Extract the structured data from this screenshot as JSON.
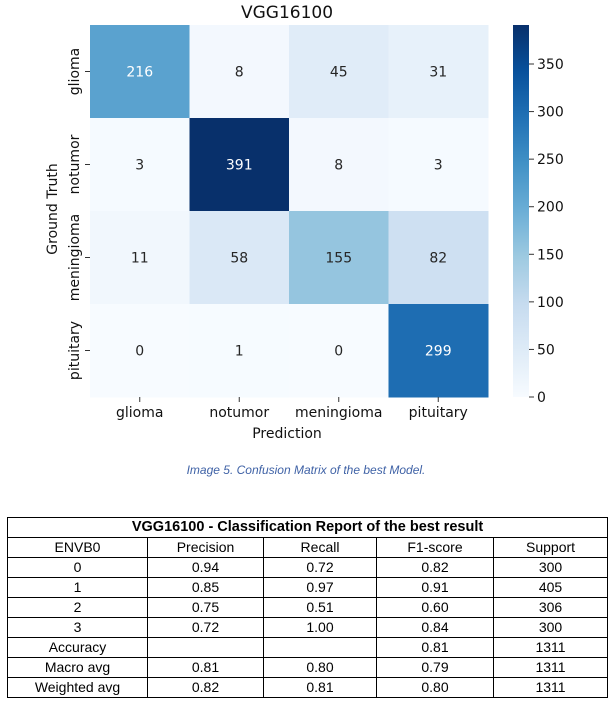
{
  "chart_data": {
    "type": "heatmap",
    "title": "VGG16100",
    "xlabel": "Prediction",
    "ylabel": "Ground Truth",
    "x_categories": [
      "glioma",
      "notumor",
      "meningioma",
      "pituitary"
    ],
    "y_categories": [
      "glioma",
      "notumor",
      "meningioma",
      "pituitary"
    ],
    "values": [
      [
        216,
        8,
        45,
        31
      ],
      [
        3,
        391,
        8,
        3
      ],
      [
        11,
        58,
        155,
        82
      ],
      [
        0,
        1,
        0,
        299
      ]
    ],
    "colorbar": {
      "min": 0,
      "max": 391,
      "ticks": [
        0,
        50,
        100,
        150,
        200,
        250,
        300,
        350
      ],
      "colormap": "Blues"
    }
  },
  "caption": "Image 5. Confusion Matrix of the best Model.",
  "report": {
    "title": "VGG16100 - Classification Report of the best result",
    "columns": [
      "ENVB0",
      "Precision",
      "Recall",
      "F1-score",
      "Support"
    ],
    "rows": [
      [
        "0",
        "0.94",
        "0.72",
        "0.82",
        "300"
      ],
      [
        "1",
        "0.85",
        "0.97",
        "0.91",
        "405"
      ],
      [
        "2",
        "0.75",
        "0.51",
        "0.60",
        "306"
      ],
      [
        "3",
        "0.72",
        "1.00",
        "0.84",
        "300"
      ],
      [
        "Accuracy",
        "",
        "",
        "0.81",
        "1311"
      ],
      [
        "Macro avg",
        "0.81",
        "0.80",
        "0.79",
        "1311"
      ],
      [
        "Weighted avg",
        "0.82",
        "0.81",
        "0.80",
        "1311"
      ]
    ]
  }
}
